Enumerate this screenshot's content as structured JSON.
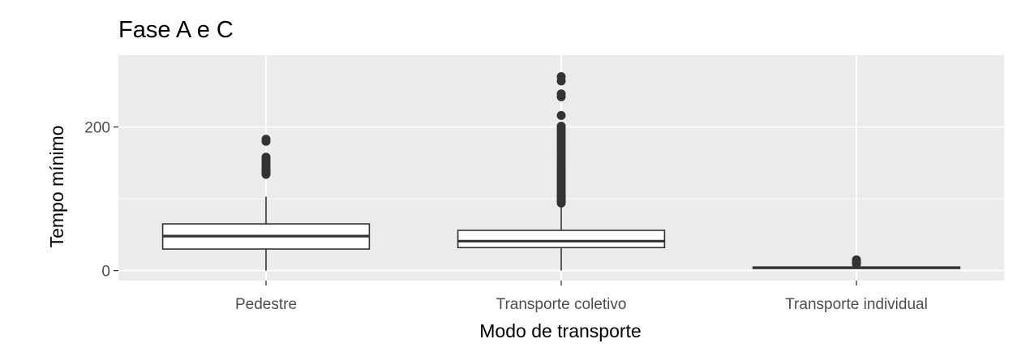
{
  "chart_data": {
    "type": "boxplot",
    "title": "Fase A e C",
    "xlabel": "Modo de transporte",
    "ylabel": "Tempo mínimo",
    "y_ticks": [
      0,
      200
    ],
    "ylim": [
      -14,
      300
    ],
    "grid": true,
    "legend": "none",
    "colors": {
      "panel": "#ebebeb",
      "grid": "#ffffff",
      "box_fill": "#ffffff",
      "box_line": "#333333",
      "outlier": "#333333",
      "tick_text": "#4d4d4d"
    },
    "categories": [
      "Pedestre",
      "Transporte coletivo",
      "Transporte individual"
    ],
    "boxes": [
      {
        "category": "Pedestre",
        "whisker_low": 0,
        "q1": 30,
        "median": 48,
        "q3": 65,
        "whisker_high": 103,
        "outliers": [
          134,
          136,
          138,
          140,
          142,
          145,
          148,
          152,
          155,
          158,
          180,
          183
        ]
      },
      {
        "category": "Transporte coletivo",
        "whisker_low": 0,
        "q1": 32,
        "median": 41,
        "q3": 56,
        "whisker_high": 91,
        "outliers": [
          94,
          96,
          98,
          100,
          102,
          104,
          106,
          108,
          110,
          113,
          116,
          119,
          122,
          125,
          128,
          131,
          134,
          137,
          140,
          143,
          146,
          150,
          154,
          158,
          162,
          166,
          170,
          174,
          178,
          182,
          186,
          190,
          194,
          198,
          201,
          216,
          242,
          246,
          264,
          270
        ]
      },
      {
        "category": "Transporte individual",
        "whisker_low": 2,
        "q1": 3,
        "median": 4,
        "q3": 5,
        "whisker_high": 8,
        "outliers": [
          9,
          11,
          13,
          15
        ]
      }
    ]
  }
}
